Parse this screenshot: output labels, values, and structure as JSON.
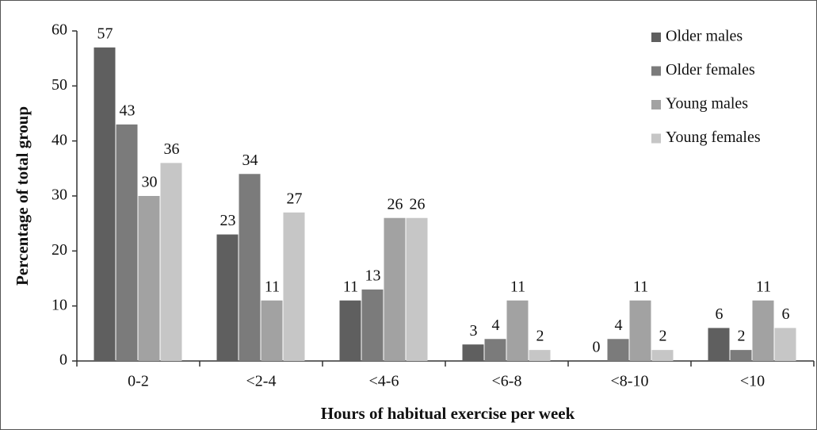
{
  "chart_data": {
    "type": "bar",
    "x_label": "Hours of habitual exercise per week",
    "y_label": "Percentage of total group",
    "categories": [
      "0-2",
      "<2-4",
      "<4-6",
      "<6-8",
      "<8-10",
      "<10"
    ],
    "series": [
      {
        "name": "Older males",
        "color": "#5f5f5f",
        "values": [
          57,
          23,
          11,
          3,
          0,
          6
        ]
      },
      {
        "name": "Older females",
        "color": "#7b7b7b",
        "values": [
          43,
          34,
          13,
          4,
          4,
          2
        ]
      },
      {
        "name": "Young males",
        "color": "#a2a2a2",
        "values": [
          30,
          11,
          26,
          11,
          11,
          11
        ]
      },
      {
        "name": "Young females",
        "color": "#c6c6c6",
        "values": [
          36,
          27,
          26,
          2,
          2,
          6
        ]
      }
    ],
    "ylim": [
      0,
      60
    ],
    "yticks": [
      0,
      10,
      20,
      30,
      40,
      50,
      60
    ],
    "legend": "top-right"
  }
}
